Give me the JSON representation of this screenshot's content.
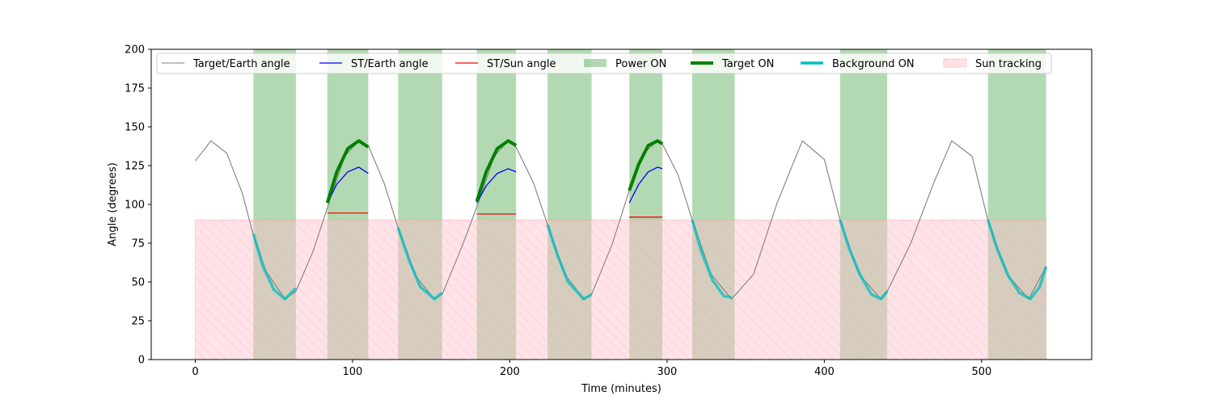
{
  "chart_data": {
    "type": "line",
    "title": "",
    "xlabel": "Time (minutes)",
    "ylabel": "Angle (degrees)",
    "xlim": [
      -28,
      570
    ],
    "ylim": [
      0,
      200
    ],
    "xticks": [
      0,
      100,
      200,
      300,
      400,
      500
    ],
    "yticks": [
      0,
      25,
      50,
      75,
      100,
      125,
      150,
      175,
      200
    ],
    "grid": false,
    "legend_position": "top",
    "colors": {
      "target_earth": "#808080",
      "st_earth": "#0000ff",
      "st_sun": "#ff0000",
      "power_on": "#008000",
      "target_on": "#008000",
      "background_on": "#00bfbf",
      "sun_tracking_fill": "#ffc0cb",
      "sun_tracking_hatch": "#ff9999"
    },
    "series": [
      {
        "name": "Target/Earth angle",
        "description": "sinusoid, period ~94.5 min, min ~39, max ~141",
        "x": [
          0,
          10,
          20,
          30,
          37,
          45,
          57,
          64,
          75,
          85,
          95,
          104,
          110,
          120,
          129,
          140,
          152,
          157,
          170,
          180,
          190,
          199,
          204,
          215,
          224,
          235,
          247,
          252,
          265,
          276,
          285,
          294,
          297,
          307,
          316,
          328,
          341,
          355,
          370,
          386,
          400,
          410,
          422,
          436,
          440,
          455,
          470,
          481,
          494,
          504,
          516,
          530,
          541
        ],
        "y": [
          128,
          141,
          133,
          107,
          80,
          57,
          39,
          44,
          70,
          101,
          131,
          141,
          138,
          114,
          85,
          54,
          39,
          42,
          74,
          101,
          131,
          141,
          137,
          114,
          87,
          55,
          39,
          42,
          74,
          109,
          133,
          141,
          139,
          119,
          90,
          55,
          39,
          55,
          101,
          141,
          129,
          90,
          55,
          39,
          44,
          75,
          115,
          141,
          131,
          90,
          55,
          39,
          60
        ]
      },
      {
        "name": "ST/Earth angle",
        "segments": [
          {
            "x": [
              84,
              90,
              97,
              104,
              110
            ],
            "y": [
              101,
              113,
              121,
              124,
              120
            ]
          },
          {
            "x": [
              179,
              185,
              192,
              199,
              204
            ],
            "y": [
              101,
              112,
              120,
              123,
              121
            ]
          },
          {
            "x": [
              276,
              282,
              288,
              294,
              297
            ],
            "y": [
              101,
              113,
              121,
              124,
              123
            ]
          }
        ]
      },
      {
        "name": "ST/Sun angle",
        "segments": [
          {
            "x": [
              84,
              110
            ],
            "y": [
              94.5,
              94.5
            ]
          },
          {
            "x": [
              179,
              204
            ],
            "y": [
              93.8,
              93.8
            ]
          },
          {
            "x": [
              276,
              297
            ],
            "y": [
              91.8,
              91.8
            ]
          }
        ]
      },
      {
        "name": "Target ON",
        "segments": [
          {
            "x": [
              84,
              90,
              97,
              104,
              110
            ],
            "y": [
              101,
              121,
              136,
              141,
              137
            ]
          },
          {
            "x": [
              179,
              185,
              192,
              199,
              204
            ],
            "y": [
              102,
              121,
              136,
              141,
              138
            ]
          },
          {
            "x": [
              276,
              282,
              288,
              294,
              297
            ],
            "y": [
              109,
              126,
              138,
              141,
              139
            ]
          }
        ]
      },
      {
        "name": "Background ON",
        "segments": [
          {
            "x": [
              37,
              43,
              50,
              57,
              64
            ],
            "y": [
              81,
              60,
              45,
              39,
              46
            ]
          },
          {
            "x": [
              129,
              136,
              143,
              152,
              157
            ],
            "y": [
              85,
              64,
              47,
              39,
              43
            ]
          },
          {
            "x": [
              224,
              230,
              237,
              247,
              252
            ],
            "y": [
              87,
              68,
              50,
              39,
              42
            ]
          },
          {
            "x": [
              316,
              322,
              329,
              336,
              341
            ],
            "y": [
              90,
              69,
              51,
              41,
              40
            ]
          },
          {
            "x": [
              410,
              416,
              423,
              430,
              436,
              440
            ],
            "y": [
              90,
              71,
              54,
              42,
              39,
              44
            ]
          },
          {
            "x": [
              504,
              510,
              517,
              524,
              531,
              537,
              541
            ],
            "y": [
              90,
              71,
              54,
              43,
              39,
              47,
              60
            ]
          }
        ]
      }
    ],
    "power_on_intervals": [
      [
        37,
        64
      ],
      [
        84,
        110
      ],
      [
        129,
        157
      ],
      [
        179,
        204
      ],
      [
        224,
        252
      ],
      [
        276,
        297
      ],
      [
        316,
        343
      ],
      [
        410,
        440
      ],
      [
        504,
        541
      ]
    ],
    "sun_tracking": {
      "x_range": [
        0,
        541
      ],
      "y_range": [
        0,
        90
      ]
    },
    "legend": [
      "Target/Earth angle",
      "ST/Earth angle",
      "ST/Sun angle",
      "Power ON",
      "Target ON",
      "Background ON",
      "Sun tracking"
    ]
  }
}
